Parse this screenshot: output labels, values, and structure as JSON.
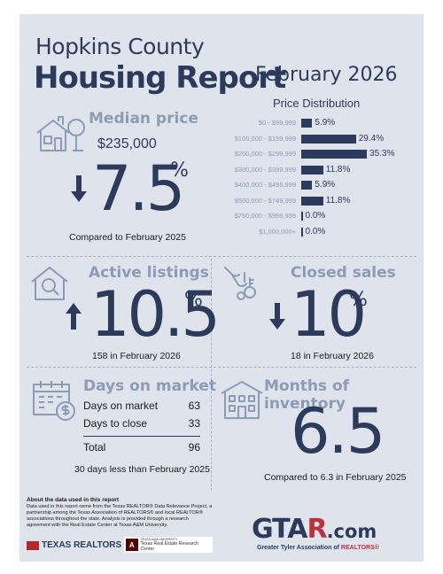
{
  "header": {
    "county": "Hopkins County",
    "report": "Housing Report",
    "month": "February 2026"
  },
  "median": {
    "title": "Median price",
    "price": "$235,000",
    "change": "7.5",
    "pct": "%",
    "direction": "down",
    "comparison": "Compared to February 2025"
  },
  "price_distribution": {
    "title": "Price Distribution",
    "rows": [
      {
        "label": "$0 - $99,999",
        "value": "5.9%",
        "pct": 5.9
      },
      {
        "label": "$100,000 - $199,999",
        "value": "29.4%",
        "pct": 29.4
      },
      {
        "label": "$200,000 - $299,999",
        "value": "35.3%",
        "pct": 35.3
      },
      {
        "label": "$300,000 - $399,999",
        "value": "11.8%",
        "pct": 11.8
      },
      {
        "label": "$400,000 - $499,999",
        "value": "5.9%",
        "pct": 5.9
      },
      {
        "label": "$500,000 - $749,999",
        "value": "11.8%",
        "pct": 11.8
      },
      {
        "label": "$750,000 - $999,999",
        "value": "0.0%",
        "pct": 0.0
      },
      {
        "label": "$1,000,000+",
        "value": "0.0%",
        "pct": 0.0
      }
    ]
  },
  "active_listings": {
    "title": "Active listings",
    "change": "10.5",
    "pct": "%",
    "direction": "up",
    "comparison": "158 in February 2026"
  },
  "closed_sales": {
    "title": "Closed sales",
    "change": "10",
    "pct": "%",
    "direction": "down",
    "comparison": "18 in February 2026"
  },
  "days_on_market": {
    "title": "Days on market",
    "rows": [
      {
        "label": "Days on market",
        "value": "63"
      },
      {
        "label": "Days to close",
        "value": "33"
      }
    ],
    "total_label": "Total",
    "total_value": "96",
    "comparison": "30 days less than February 2025"
  },
  "months_inventory": {
    "title": "Months of inventory",
    "value": "6.5",
    "comparison": "Compared to 6.3 in February 2025"
  },
  "footer": {
    "about_title": "About the data used in this report",
    "about_text": "Data used in this report come from the Texas REALTOR® Data Relevance Project, a partnership among the Texas Association of REALTORS® and local REALTOR® associations throughout the state. Analysis is provided through a research agreement with the Real Estate Center at Texas A&M University.",
    "texas_realtors": "TEXAS REALTORS",
    "tamu_small": "TEXAS A&M UNIVERSITY",
    "tamu_name": "Texas Real Estate Research Center",
    "gtar_a": "GT",
    "gtar_b": "A",
    "gtar_c": "R",
    "gtar_com": ".com",
    "gtar_sub_a": "Greater Tyler Association of ",
    "gtar_sub_b": "REALTORS®"
  },
  "colors": {
    "navy": "#2c3a5c",
    "steel": "#8c9bb6",
    "background": "#dfe4ec",
    "accent_red": "#c0303b"
  },
  "icons": [
    "house-tree-icon",
    "search-house-icon",
    "hand-keys-icon",
    "calendar-dollar-icon",
    "apartment-building-icon"
  ]
}
